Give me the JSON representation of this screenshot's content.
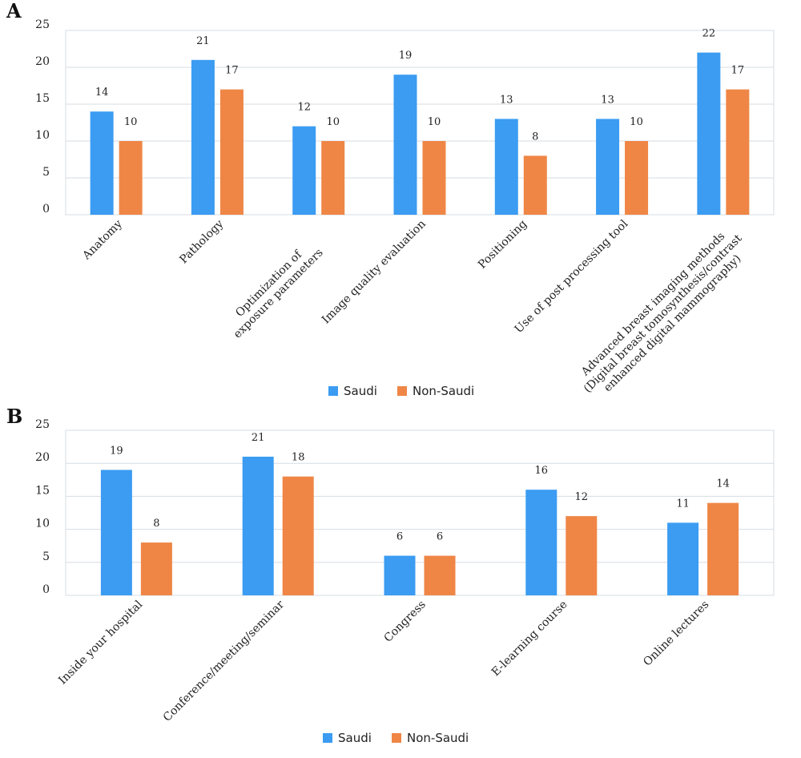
{
  "chart_data": [
    {
      "panel": "A",
      "type": "bar",
      "categories": [
        [
          "Anatomy"
        ],
        [
          "Pathology"
        ],
        [
          "Optimization of",
          "exposure parameters"
        ],
        [
          "Image quality evaluation"
        ],
        [
          "Positioning"
        ],
        [
          "Use of post processing tool"
        ],
        [
          "Advanced breast imaging methods",
          "(Digital breast tomosynthesis/contrast",
          "enhanced digital mammography)"
        ]
      ],
      "series": [
        {
          "name": "Saudi",
          "color": "#3b9cf2",
          "values": [
            14,
            21,
            12,
            19,
            13,
            13,
            22
          ]
        },
        {
          "name": "Non-Saudi",
          "color": "#ef8646",
          "values": [
            10,
            17,
            10,
            10,
            8,
            10,
            17
          ]
        }
      ],
      "yticks": [
        "0",
        "5",
        "10",
        "15",
        "20",
        "25"
      ],
      "ylim": [
        0,
        25
      ],
      "grid": true,
      "legend": "bottom-center"
    },
    {
      "panel": "B",
      "type": "bar",
      "categories": [
        [
          "Inside your hospital"
        ],
        [
          "Conference/meeting/seminar"
        ],
        [
          "Congress"
        ],
        [
          "E-learning course"
        ],
        [
          "Online lectures"
        ]
      ],
      "series": [
        {
          "name": "Saudi",
          "color": "#3b9cf2",
          "values": [
            19,
            21,
            6,
            16,
            11
          ]
        },
        {
          "name": "Non-Saudi",
          "color": "#ef8646",
          "values": [
            8,
            18,
            6,
            12,
            14
          ]
        }
      ],
      "yticks": [
        "0",
        "5",
        "10",
        "15",
        "20",
        "25"
      ],
      "ylim": [
        0,
        25
      ],
      "grid": true,
      "legend": "bottom-center"
    }
  ]
}
